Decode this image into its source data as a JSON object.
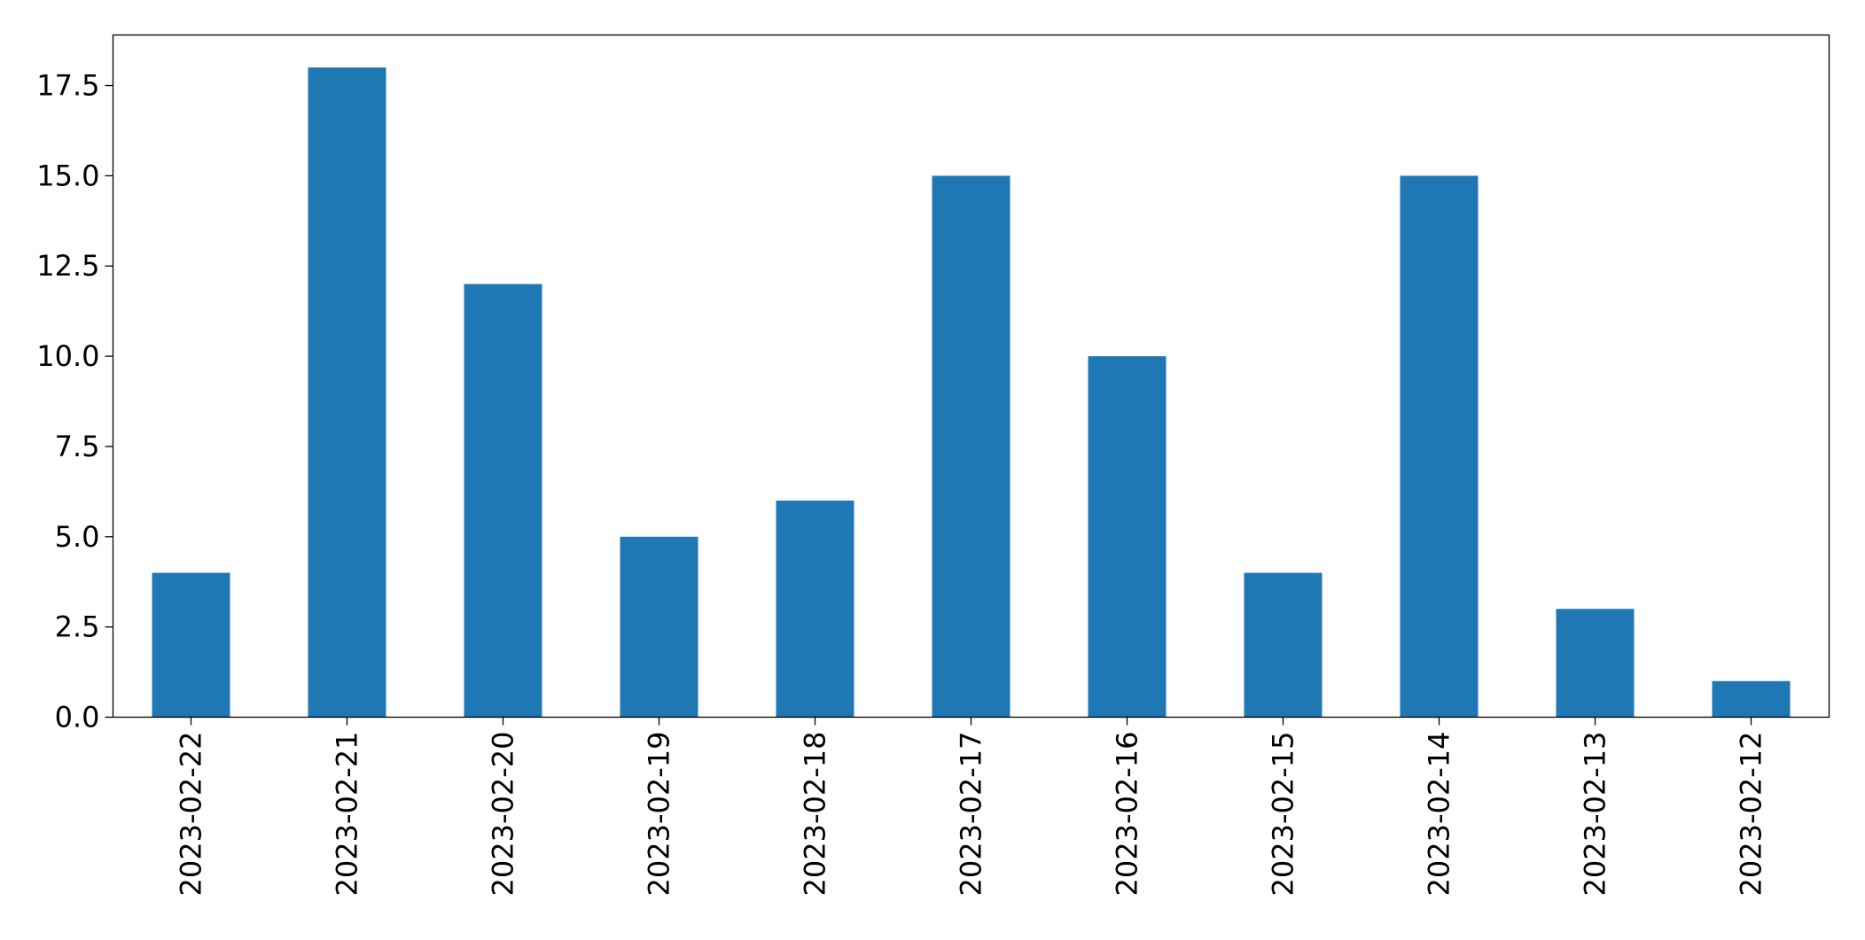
{
  "chart_data": {
    "type": "bar",
    "title": "",
    "xlabel": "",
    "ylabel": "",
    "categories": [
      "2023-02-22",
      "2023-02-21",
      "2023-02-20",
      "2023-02-19",
      "2023-02-18",
      "2023-02-17",
      "2023-02-16",
      "2023-02-15",
      "2023-02-14",
      "2023-02-13",
      "2023-02-12"
    ],
    "values": [
      4,
      18,
      12,
      5,
      6,
      15,
      10,
      4,
      15,
      3,
      1
    ],
    "ylim": [
      0,
      18.9
    ],
    "yticks": [
      0.0,
      2.5,
      5.0,
      7.5,
      10.0,
      12.5,
      15.0,
      17.5
    ],
    "ytick_labels": [
      "0.0",
      "2.5",
      "5.0",
      "7.5",
      "10.0",
      "12.5",
      "15.0",
      "17.5"
    ],
    "grid": false,
    "legend": "none",
    "bar_color": "#1f77b4"
  }
}
